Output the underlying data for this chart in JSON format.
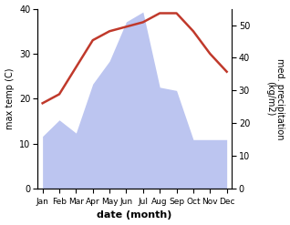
{
  "months": [
    "Jan",
    "Feb",
    "Mar",
    "Apr",
    "May",
    "Jun",
    "Jul",
    "Aug",
    "Sep",
    "Oct",
    "Nov",
    "Dec"
  ],
  "temperature": [
    19,
    21,
    27,
    33,
    35,
    36,
    37,
    39,
    39,
    35,
    30,
    26
  ],
  "precipitation": [
    16,
    21,
    17,
    32,
    39,
    51,
    54,
    31,
    30,
    15,
    15,
    15
  ],
  "temp_color": "#c0392b",
  "precip_fill_color": "#bcc5f0",
  "xlabel": "date (month)",
  "ylabel_left": "max temp (C)",
  "ylabel_right": "med. precipitation\n(kg/m2)",
  "ylim_left": [
    0,
    40
  ],
  "ylim_right": [
    0,
    55
  ],
  "yticks_left": [
    0,
    10,
    20,
    30,
    40
  ],
  "yticks_right": [
    0,
    10,
    20,
    30,
    40,
    50
  ],
  "figsize": [
    3.18,
    2.47
  ],
  "dpi": 100
}
